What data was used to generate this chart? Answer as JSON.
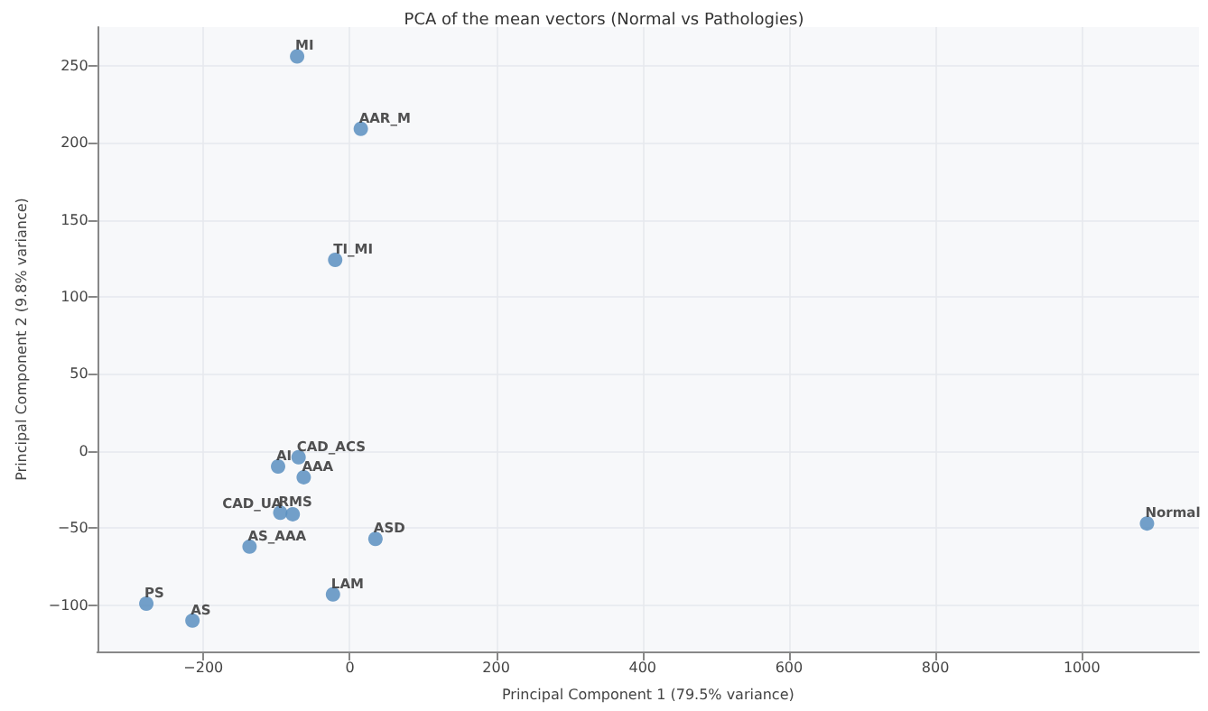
{
  "chart_data": {
    "type": "scatter",
    "title": "PCA of the mean vectors (Normal vs Pathologies)",
    "xlabel": "Principal Component 1 (79.5% variance)",
    "ylabel": "Principal Component 2 (9.8% variance)",
    "xlim": [
      -345,
      1160
    ],
    "ylim": [
      -130,
      275
    ],
    "xticks": [
      -200,
      0,
      200,
      400,
      600,
      800,
      1000
    ],
    "yticks": [
      -100,
      -50,
      0,
      50,
      100,
      150,
      200,
      250
    ],
    "grid": true,
    "legend": false,
    "marker": "circle",
    "series": [
      {
        "name": "MI",
        "color": "#5b8fbf",
        "x": [
          -72
        ],
        "values": [
          256
        ]
      },
      {
        "name": "AAR_M",
        "color": "#5b8fbf",
        "x": [
          15
        ],
        "values": [
          209
        ]
      },
      {
        "name": "TI_MI",
        "color": "#5b8fbf",
        "x": [
          -20
        ],
        "values": [
          124
        ]
      },
      {
        "name": "CAD_ACS",
        "color": "#5b8fbf",
        "x": [
          -70
        ],
        "values": [
          -4
        ]
      },
      {
        "name": "AI",
        "color": "#5b8fbf",
        "x": [
          -98
        ],
        "values": [
          -10
        ]
      },
      {
        "name": "AAA",
        "color": "#5b8fbf",
        "x": [
          -63
        ],
        "values": [
          -17
        ]
      },
      {
        "name": "RMS",
        "color": "#5b8fbf",
        "x": [
          -95
        ],
        "values": [
          -40
        ]
      },
      {
        "name": "CAD_UA",
        "color": "#5b8fbf",
        "x": [
          -78
        ],
        "values": [
          -41
        ]
      },
      {
        "name": "ASD",
        "color": "#5b8fbf",
        "x": [
          35
        ],
        "values": [
          -57
        ]
      },
      {
        "name": "AS_AAA",
        "color": "#5b8fbf",
        "x": [
          -137
        ],
        "values": [
          -62
        ]
      },
      {
        "name": "LAM",
        "color": "#5b8fbf",
        "x": [
          -23
        ],
        "values": [
          -93
        ]
      },
      {
        "name": "PS",
        "color": "#5b8fbf",
        "x": [
          -278
        ],
        "values": [
          -99
        ]
      },
      {
        "name": "AS",
        "color": "#5b8fbf",
        "x": [
          -215
        ],
        "values": [
          -110
        ]
      },
      {
        "name": "Normal",
        "color": "#5b8fbf",
        "x": [
          1089
        ],
        "values": [
          -47
        ]
      }
    ]
  }
}
